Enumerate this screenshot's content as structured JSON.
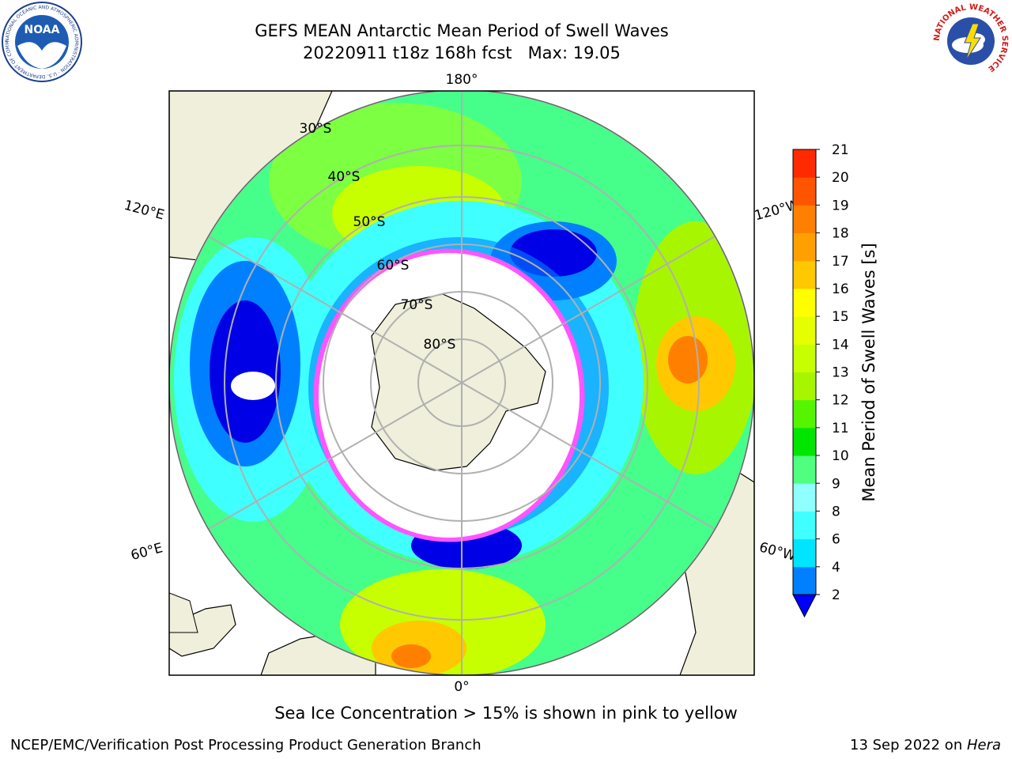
{
  "header": {
    "title_line1": "GEFS MEAN Antarctic Mean Period of Swell Waves",
    "title_line2": "20220911 t18z 168h fcst   Max: 19.05"
  },
  "logos": {
    "left": "NOAA",
    "left_ring_text": "NATIONAL OCEANIC AND ATMOSPHERIC ADMINISTRATION · U.S. DEPARTMENT OF COMMERCE",
    "right_ring_text": "NATIONAL WEATHER SERVICE"
  },
  "map": {
    "longitude_labels": {
      "top": "180°",
      "bottom": "0°",
      "left_upper": "120°E",
      "left_lower": "60°E",
      "right_upper": "120°W",
      "right_lower": "60°W"
    },
    "latitude_labels": [
      "30°S",
      "40°S",
      "50°S",
      "60°S",
      "70°S",
      "80°S"
    ]
  },
  "colorbar": {
    "label": "Mean Period of Swell Waves [s]",
    "ticks": [
      "2",
      "4",
      "6",
      "8",
      "9",
      "10",
      "11",
      "12",
      "13",
      "14",
      "15",
      "16",
      "17",
      "18",
      "19",
      "20",
      "21"
    ],
    "colors": [
      "#0080ff",
      "#00e5ff",
      "#40ffff",
      "#90ffff",
      "#50ff80",
      "#00e600",
      "#55f500",
      "#a8f500",
      "#c8ff00",
      "#e6ff00",
      "#ffff00",
      "#ffc800",
      "#ffa000",
      "#ff8000",
      "#ff5500",
      "#ff2a00",
      "#ff0000"
    ],
    "underflow_color": "#0000ff"
  },
  "caption": "Sea Ice Concentration > 15% is shown in pink to yellow",
  "footer": {
    "left": "NCEP/EMC/Verification Post Processing Product Generation Branch",
    "right_date": "13 Sep 2022 on ",
    "right_host": "Hera"
  }
}
